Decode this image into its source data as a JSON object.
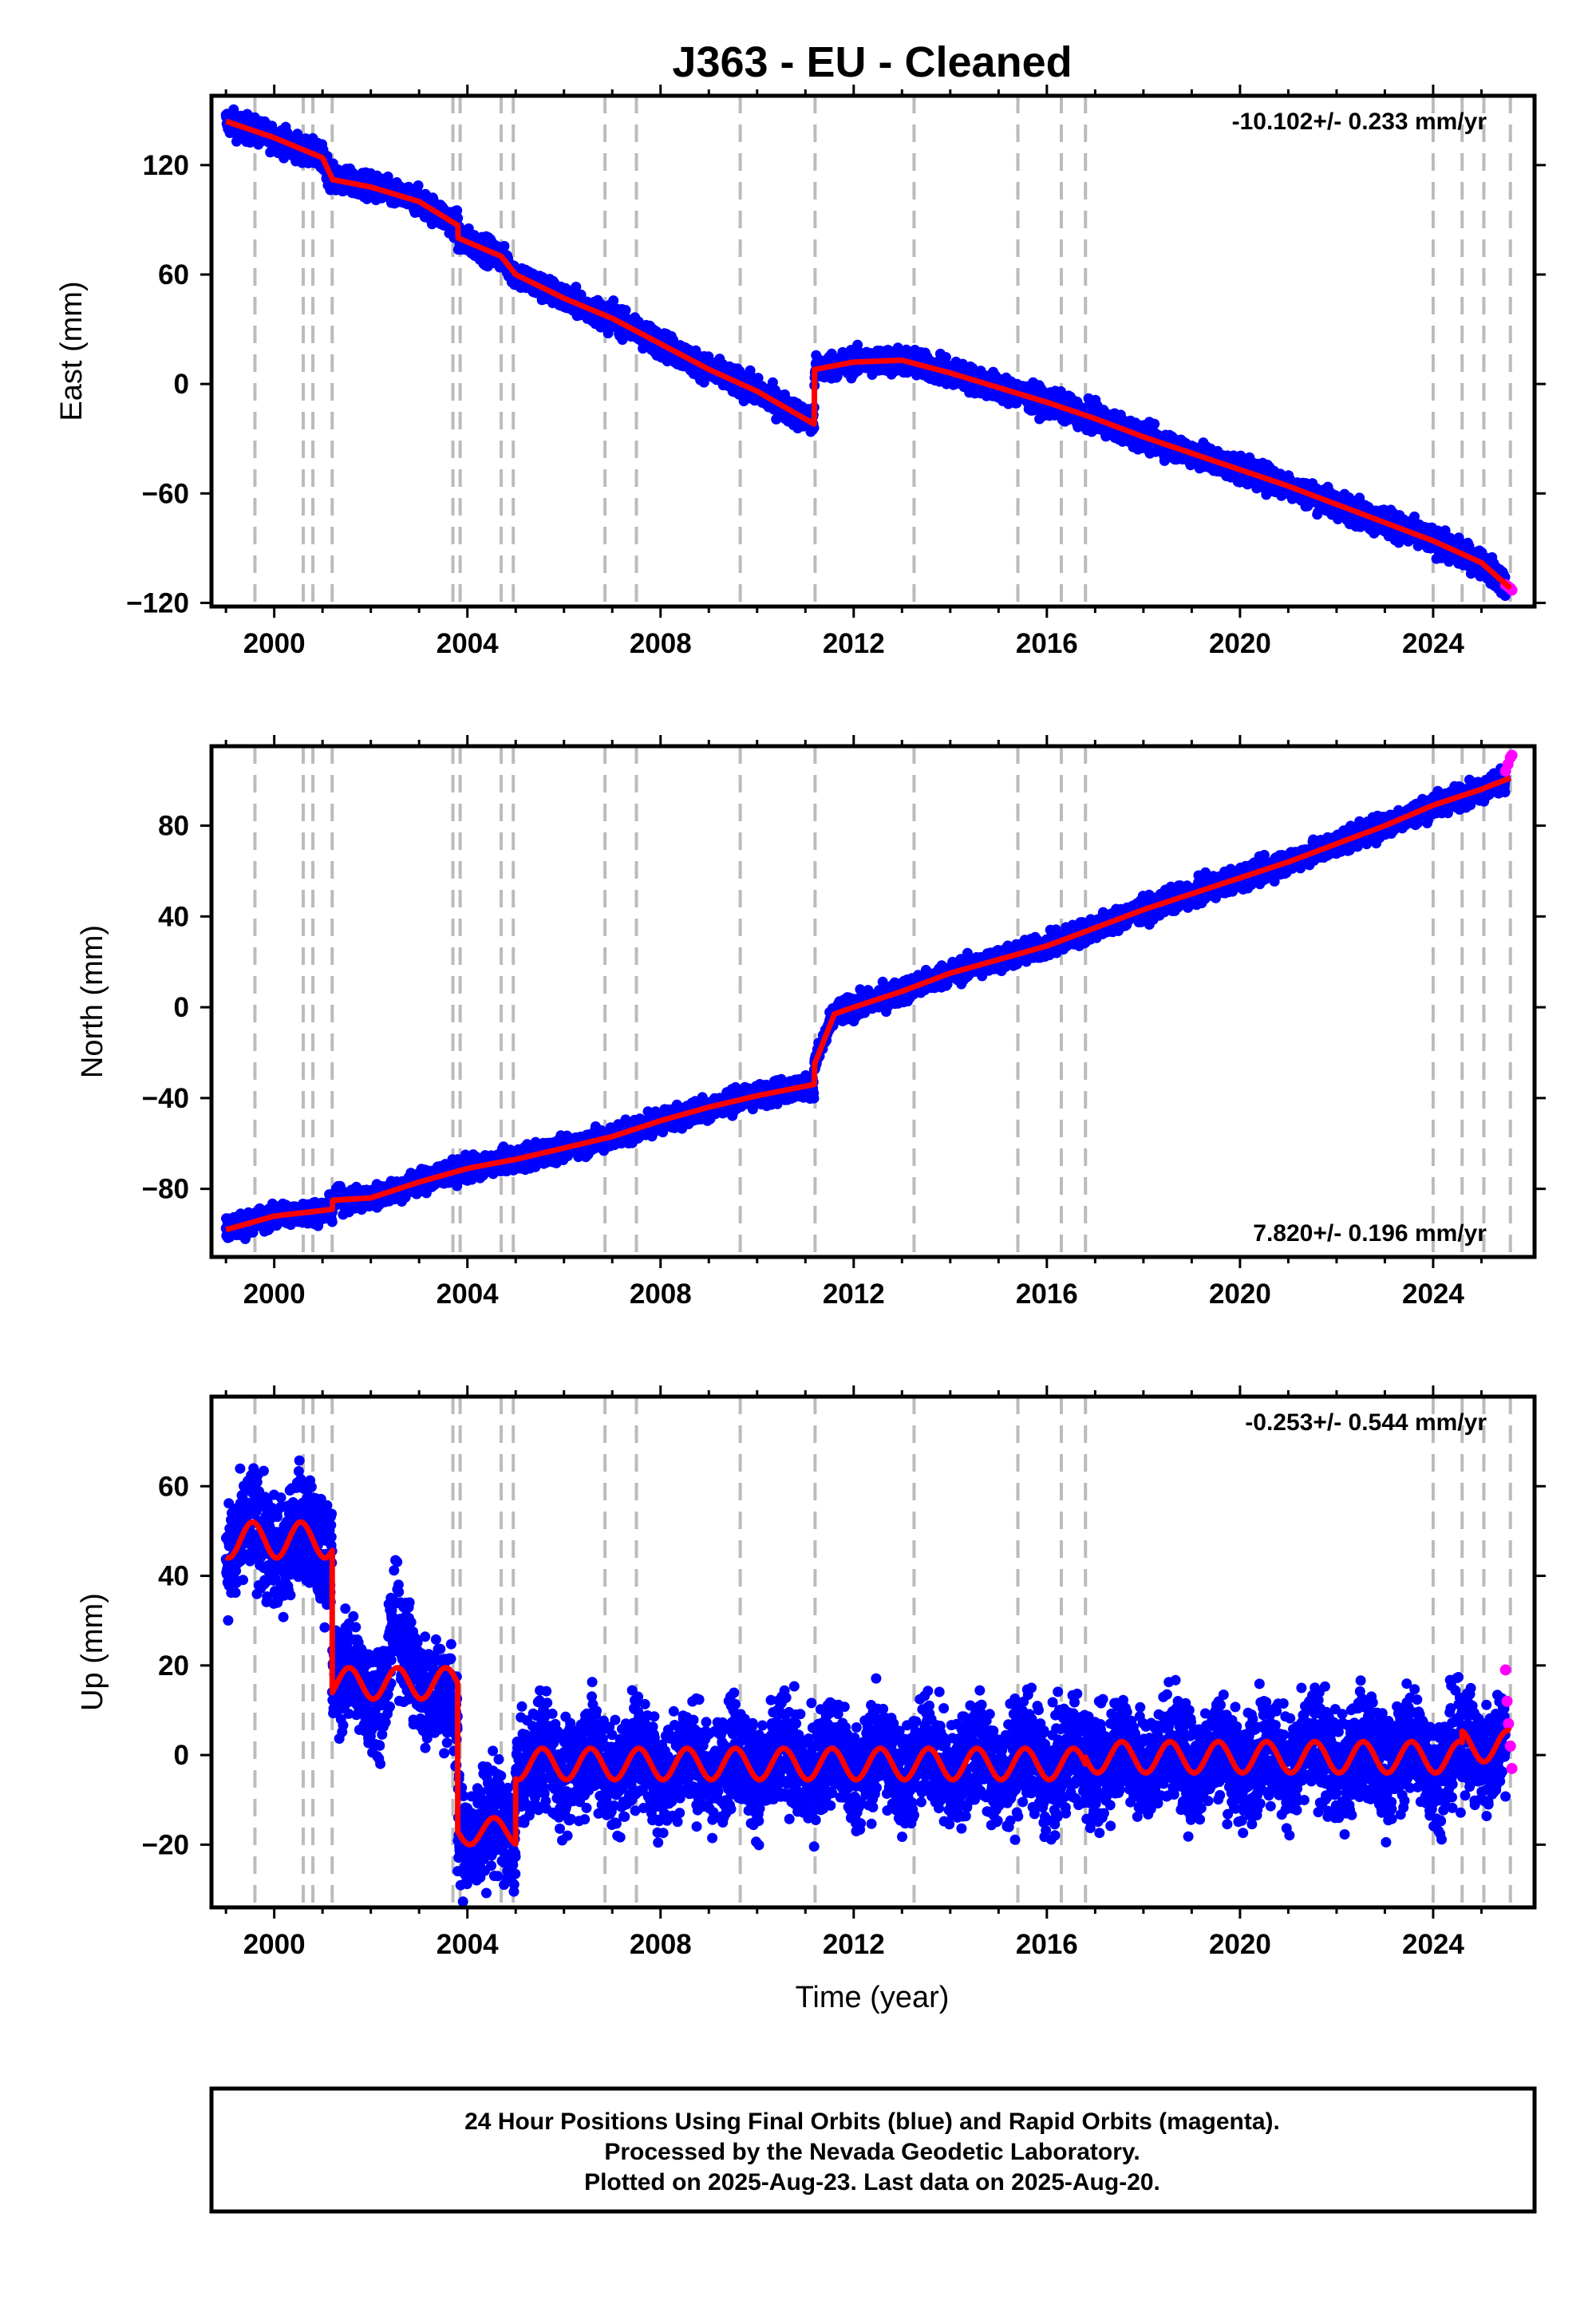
{
  "title": "J363  - EU - Cleaned",
  "xlabel": "Time (year)",
  "footer": {
    "line1": "24 Hour Positions Using Final Orbits (blue) and Rapid Orbits (magenta).",
    "line2": "Processed by the Nevada Geodetic Laboratory.",
    "line3": "Plotted on 2025-Aug-23. Last data on 2025-Aug-20."
  },
  "colors": {
    "final": "#0000ff",
    "rapid": "#ff00ff",
    "model": "#ff0000",
    "event": "#bbbbbb"
  },
  "chart_data": [
    {
      "type": "scatter",
      "component": "east",
      "ylabel": "East (mm)",
      "rate": "-10.102+/- 0.233 mm/yr",
      "rate_position": "top-right",
      "xlim": [
        1998.7,
        2026.1
      ],
      "ylim": [
        -122,
        158
      ],
      "yticks": [
        -120,
        -60,
        0,
        60,
        120
      ],
      "xticks": [
        2000,
        2004,
        2008,
        2012,
        2016,
        2020,
        2024
      ],
      "events": [
        1999.6,
        2000.6,
        2000.8,
        2001.2,
        2003.7,
        2003.85,
        2004.7,
        2004.95,
        2006.85,
        2007.5,
        2009.65,
        2011.2,
        2013.25,
        2015.4,
        2016.3,
        2016.8,
        2024.0,
        2024.6,
        2025.05,
        2025.6
      ],
      "model": {
        "x": [
          1999.0,
          2000.0,
          2001.0,
          2001.21,
          2002.0,
          2003.0,
          2003.8,
          2003.81,
          2004.7,
          2005.0,
          2006.0,
          2007.0,
          2008.0,
          2009.0,
          2010.0,
          2011.18,
          2011.19,
          2012.0,
          2013.0,
          2014.0,
          2015.0,
          2016.0,
          2017.0,
          2018.0,
          2019.0,
          2020.0,
          2021.0,
          2022.0,
          2023.0,
          2024.0,
          2025.0,
          2025.6
        ],
        "y": [
          144,
          135,
          124,
          112,
          108,
          100,
          87,
          80,
          70,
          60,
          47,
          36,
          22,
          8,
          -4,
          -22,
          8,
          12,
          13,
          6,
          -2,
          -10,
          -19,
          -29,
          -38,
          -47,
          -56,
          -66,
          -76,
          -86,
          -98,
          -112
        ]
      },
      "final_scatter": 3.5,
      "rapid": {
        "x": [
          2025.5,
          2025.55,
          2025.6,
          2025.63
        ],
        "y": [
          -110,
          -111,
          -112,
          -113
        ]
      }
    },
    {
      "type": "scatter",
      "component": "north",
      "ylabel": "North (mm)",
      "rate": "7.820+/- 0.196 mm/yr",
      "rate_position": "bottom-right",
      "xlim": [
        1998.7,
        2026.1
      ],
      "ylim": [
        -110,
        115
      ],
      "yticks": [
        -80,
        -40,
        0,
        40,
        80
      ],
      "xticks": [
        2000,
        2004,
        2008,
        2012,
        2016,
        2020,
        2024
      ],
      "events": [
        1999.6,
        2000.6,
        2000.8,
        2001.2,
        2003.7,
        2003.85,
        2004.7,
        2004.95,
        2006.85,
        2007.5,
        2009.65,
        2011.2,
        2013.25,
        2015.4,
        2016.3,
        2016.8,
        2024.0,
        2024.6,
        2025.05,
        2025.6
      ],
      "model": {
        "x": [
          1999.0,
          2000.0,
          2001.2,
          2001.21,
          2002.0,
          2003.0,
          2004.0,
          2005.0,
          2006.0,
          2007.0,
          2008.0,
          2009.0,
          2010.0,
          2011.18,
          2011.19,
          2011.6,
          2012.0,
          2013.0,
          2014.0,
          2015.0,
          2016.0,
          2017.0,
          2018.0,
          2019.0,
          2020.0,
          2021.0,
          2022.0,
          2023.0,
          2024.0,
          2025.0,
          2025.6
        ],
        "y": [
          -98,
          -92,
          -89,
          -85,
          -84,
          -77,
          -71,
          -67,
          -62,
          -57,
          -50,
          -44,
          -39,
          -34,
          -25,
          -3,
          0,
          7,
          15,
          21,
          27,
          35,
          43,
          50,
          57,
          64,
          72,
          80,
          89,
          96,
          101
        ]
      },
      "final_scatter": 2.5,
      "rapid": {
        "x": [
          2025.5,
          2025.55,
          2025.6,
          2025.63
        ],
        "y": [
          104,
          107,
          110,
          111
        ]
      }
    },
    {
      "type": "scatter",
      "component": "up",
      "ylabel": "Up (mm)",
      "rate": "-0.253+/- 0.544 mm/yr",
      "rate_position": "top-right",
      "xlim": [
        1998.7,
        2026.1
      ],
      "ylim": [
        -34,
        80
      ],
      "yticks": [
        -20,
        0,
        20,
        40,
        60
      ],
      "xticks": [
        2000,
        2004,
        2008,
        2012,
        2016,
        2020,
        2024
      ],
      "events": [
        1999.6,
        2000.6,
        2000.8,
        2001.2,
        2003.7,
        2003.85,
        2004.7,
        2004.95,
        2006.85,
        2007.5,
        2009.65,
        2011.2,
        2013.25,
        2015.4,
        2016.3,
        2016.8,
        2024.0,
        2024.6,
        2025.05,
        2025.6
      ],
      "model_segments": [
        {
          "x0": 1999.0,
          "x1": 2001.2,
          "base": 48,
          "amp": 4
        },
        {
          "x0": 2001.2,
          "x1": 2003.8,
          "base": 16,
          "amp": 3.5
        },
        {
          "x0": 2003.8,
          "x1": 2005.0,
          "base": -17,
          "amp": 3
        },
        {
          "x0": 2005.0,
          "x1": 2016.8,
          "base": -2,
          "amp": 3.5
        },
        {
          "x0": 2016.8,
          "x1": 2024.6,
          "base": -0.5,
          "amp": 3.5
        },
        {
          "x0": 2024.6,
          "x1": 2025.6,
          "base": 2,
          "amp": 3.5
        }
      ],
      "final_scatter": 6,
      "rapid": {
        "x": [
          2025.5,
          2025.53,
          2025.56,
          2025.6,
          2025.63
        ],
        "y": [
          19,
          12,
          7,
          2,
          -3
        ]
      }
    }
  ]
}
